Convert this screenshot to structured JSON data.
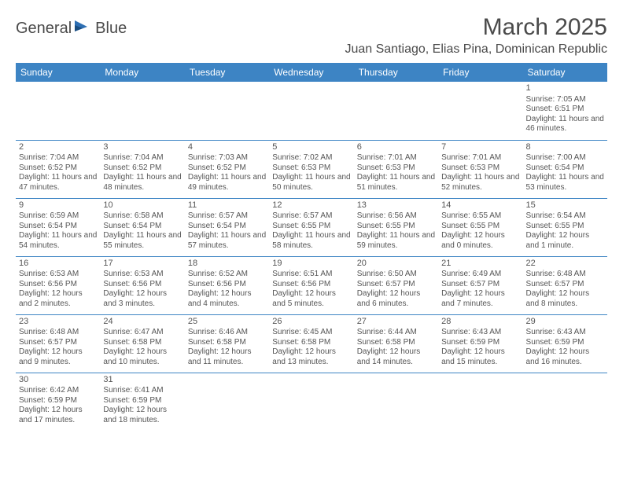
{
  "logo": {
    "part1": "General",
    "part2": "Blue"
  },
  "title": "March 2025",
  "location": "Juan Santiago, Elias Pina, Dominican Republic",
  "colors": {
    "header_bg": "#3d84c4",
    "header_text": "#ffffff",
    "border": "#3d84c4",
    "text": "#555555",
    "title": "#4a4a4a",
    "blank_bg": "#f0f0f0"
  },
  "fonts": {
    "family": "Arial",
    "title_size": 30,
    "location_size": 16,
    "dayhead_size": 12,
    "cell_size": 10
  },
  "daysOfWeek": [
    "Sunday",
    "Monday",
    "Tuesday",
    "Wednesday",
    "Thursday",
    "Friday",
    "Saturday"
  ],
  "weeks": [
    [
      null,
      null,
      null,
      null,
      null,
      null,
      {
        "n": "1",
        "sr": "7:05 AM",
        "ss": "6:51 PM",
        "dl": "11 hours and 46 minutes."
      }
    ],
    [
      {
        "n": "2",
        "sr": "7:04 AM",
        "ss": "6:52 PM",
        "dl": "11 hours and 47 minutes."
      },
      {
        "n": "3",
        "sr": "7:04 AM",
        "ss": "6:52 PM",
        "dl": "11 hours and 48 minutes."
      },
      {
        "n": "4",
        "sr": "7:03 AM",
        "ss": "6:52 PM",
        "dl": "11 hours and 49 minutes."
      },
      {
        "n": "5",
        "sr": "7:02 AM",
        "ss": "6:53 PM",
        "dl": "11 hours and 50 minutes."
      },
      {
        "n": "6",
        "sr": "7:01 AM",
        "ss": "6:53 PM",
        "dl": "11 hours and 51 minutes."
      },
      {
        "n": "7",
        "sr": "7:01 AM",
        "ss": "6:53 PM",
        "dl": "11 hours and 52 minutes."
      },
      {
        "n": "8",
        "sr": "7:00 AM",
        "ss": "6:54 PM",
        "dl": "11 hours and 53 minutes."
      }
    ],
    [
      {
        "n": "9",
        "sr": "6:59 AM",
        "ss": "6:54 PM",
        "dl": "11 hours and 54 minutes."
      },
      {
        "n": "10",
        "sr": "6:58 AM",
        "ss": "6:54 PM",
        "dl": "11 hours and 55 minutes."
      },
      {
        "n": "11",
        "sr": "6:57 AM",
        "ss": "6:54 PM",
        "dl": "11 hours and 57 minutes."
      },
      {
        "n": "12",
        "sr": "6:57 AM",
        "ss": "6:55 PM",
        "dl": "11 hours and 58 minutes."
      },
      {
        "n": "13",
        "sr": "6:56 AM",
        "ss": "6:55 PM",
        "dl": "11 hours and 59 minutes."
      },
      {
        "n": "14",
        "sr": "6:55 AM",
        "ss": "6:55 PM",
        "dl": "12 hours and 0 minutes."
      },
      {
        "n": "15",
        "sr": "6:54 AM",
        "ss": "6:55 PM",
        "dl": "12 hours and 1 minute."
      }
    ],
    [
      {
        "n": "16",
        "sr": "6:53 AM",
        "ss": "6:56 PM",
        "dl": "12 hours and 2 minutes."
      },
      {
        "n": "17",
        "sr": "6:53 AM",
        "ss": "6:56 PM",
        "dl": "12 hours and 3 minutes."
      },
      {
        "n": "18",
        "sr": "6:52 AM",
        "ss": "6:56 PM",
        "dl": "12 hours and 4 minutes."
      },
      {
        "n": "19",
        "sr": "6:51 AM",
        "ss": "6:56 PM",
        "dl": "12 hours and 5 minutes."
      },
      {
        "n": "20",
        "sr": "6:50 AM",
        "ss": "6:57 PM",
        "dl": "12 hours and 6 minutes."
      },
      {
        "n": "21",
        "sr": "6:49 AM",
        "ss": "6:57 PM",
        "dl": "12 hours and 7 minutes."
      },
      {
        "n": "22",
        "sr": "6:48 AM",
        "ss": "6:57 PM",
        "dl": "12 hours and 8 minutes."
      }
    ],
    [
      {
        "n": "23",
        "sr": "6:48 AM",
        "ss": "6:57 PM",
        "dl": "12 hours and 9 minutes."
      },
      {
        "n": "24",
        "sr": "6:47 AM",
        "ss": "6:58 PM",
        "dl": "12 hours and 10 minutes."
      },
      {
        "n": "25",
        "sr": "6:46 AM",
        "ss": "6:58 PM",
        "dl": "12 hours and 11 minutes."
      },
      {
        "n": "26",
        "sr": "6:45 AM",
        "ss": "6:58 PM",
        "dl": "12 hours and 13 minutes."
      },
      {
        "n": "27",
        "sr": "6:44 AM",
        "ss": "6:58 PM",
        "dl": "12 hours and 14 minutes."
      },
      {
        "n": "28",
        "sr": "6:43 AM",
        "ss": "6:59 PM",
        "dl": "12 hours and 15 minutes."
      },
      {
        "n": "29",
        "sr": "6:43 AM",
        "ss": "6:59 PM",
        "dl": "12 hours and 16 minutes."
      }
    ],
    [
      {
        "n": "30",
        "sr": "6:42 AM",
        "ss": "6:59 PM",
        "dl": "12 hours and 17 minutes."
      },
      {
        "n": "31",
        "sr": "6:41 AM",
        "ss": "6:59 PM",
        "dl": "12 hours and 18 minutes."
      },
      null,
      null,
      null,
      null,
      null
    ]
  ],
  "labels": {
    "sunrise": "Sunrise: ",
    "sunset": "Sunset: ",
    "daylight": "Daylight: "
  }
}
